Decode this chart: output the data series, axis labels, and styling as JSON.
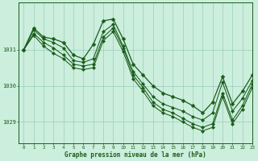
{
  "xlabel": "Graphe pression niveau de la mer (hPa)",
  "bg_color": "#cceedd",
  "grid_color": "#99ccbb",
  "line_color": "#1a5c1a",
  "marker_color": "#1a5c1a",
  "xlim": [
    -0.5,
    23
  ],
  "ylim": [
    1028.4,
    1032.3
  ],
  "yticks": [
    1029,
    1030,
    1031
  ],
  "xticks": [
    0,
    1,
    2,
    3,
    4,
    5,
    6,
    7,
    8,
    9,
    10,
    11,
    12,
    13,
    14,
    15,
    16,
    17,
    18,
    19,
    20,
    21,
    22,
    23
  ],
  "series": [
    [
      1031.0,
      1031.6,
      1031.35,
      1031.3,
      1031.2,
      1030.85,
      1030.75,
      1031.15,
      1031.8,
      1031.85,
      1031.3,
      1030.6,
      1030.3,
      1030.0,
      1029.8,
      1029.7,
      1029.6,
      1029.45,
      1029.25,
      1029.55,
      1030.25,
      1029.5,
      1029.85,
      1030.3
    ],
    [
      1031.0,
      1031.55,
      1031.3,
      1031.2,
      1031.05,
      1030.7,
      1030.65,
      1030.75,
      1031.5,
      1031.7,
      1031.1,
      1030.4,
      1030.05,
      1029.7,
      1029.5,
      1029.4,
      1029.3,
      1029.15,
      1029.05,
      1029.25,
      1030.1,
      1029.3,
      1029.65,
      1030.15
    ],
    [
      1031.0,
      1031.45,
      1031.2,
      1031.05,
      1030.85,
      1030.6,
      1030.55,
      1030.6,
      1031.35,
      1031.6,
      1031.05,
      1030.3,
      1029.95,
      1029.55,
      1029.35,
      1029.25,
      1029.1,
      1028.95,
      1028.85,
      1028.95,
      1029.8,
      1029.05,
      1029.45,
      1030.05
    ],
    [
      1031.0,
      1031.4,
      1031.1,
      1030.9,
      1030.75,
      1030.5,
      1030.45,
      1030.5,
      1031.25,
      1031.5,
      1030.95,
      1030.2,
      1029.85,
      1029.45,
      1029.25,
      1029.15,
      1029.0,
      1028.85,
      1028.75,
      1028.85,
      1029.7,
      1028.95,
      1029.35,
      1029.95
    ]
  ]
}
